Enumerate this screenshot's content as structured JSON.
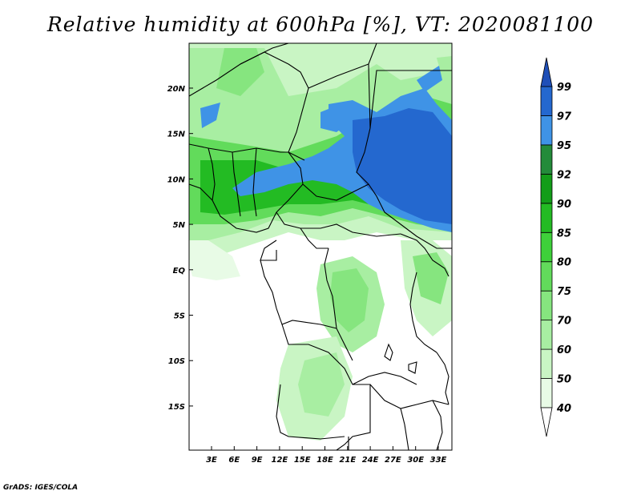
{
  "title": "Relative humidity at 600hPa [%], VT: 2020081100",
  "credit": "GrADS: IGES/COLA",
  "map": {
    "lat_labels": [
      "20N",
      "15N",
      "10N",
      "5N",
      "EQ",
      "5S",
      "10S",
      "15S"
    ],
    "lon_labels": [
      "3E",
      "6E",
      "9E",
      "12E",
      "15E",
      "18E",
      "21E",
      "24E",
      "27E",
      "30E",
      "33E"
    ]
  },
  "colorbar": {
    "levels": [
      "40",
      "50",
      "60",
      "70",
      "75",
      "80",
      "85",
      "90",
      "92",
      "95",
      "97",
      "99"
    ],
    "colors": [
      "#ffffff",
      "#e8fbe6",
      "#c9f5c4",
      "#a8eea2",
      "#86e57f",
      "#62db5b",
      "#3ed03a",
      "#23bb23",
      "#139d19",
      "#238b3a",
      "#3f93e6",
      "#2468cf",
      "#1f4fb8"
    ]
  }
}
